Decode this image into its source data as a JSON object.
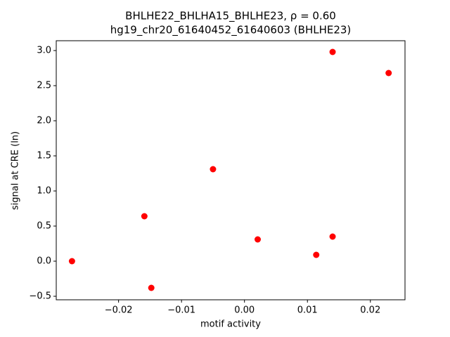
{
  "chart_data": {
    "type": "scatter",
    "title": "BHLHE22_BHLHA15_BHLHE23, ρ = 0.60",
    "subtitle": "hg19_chr20_61640452_61640603 (BHLHE23)",
    "x_label": "motif activity",
    "y_label": "signal at CRE (ln)",
    "color": "#ff0000",
    "x": [
      -0.0274,
      -0.0159,
      -0.0148,
      -0.005,
      0.0021,
      0.0114,
      0.014,
      0.014,
      0.0229
    ],
    "values": [
      0.0,
      0.64,
      -0.38,
      1.31,
      0.31,
      0.09,
      0.35,
      2.98,
      2.68
    ],
    "xlim": [
      -0.0299,
      0.0255
    ],
    "ylim": [
      -0.55,
      3.14
    ],
    "xticks": [
      {
        "value": -0.02,
        "label": "−0.02"
      },
      {
        "value": -0.01,
        "label": "−0.01"
      },
      {
        "value": 0,
        "label": "0.00"
      },
      0.01,
      0.02
    ],
    "yticks": [
      {
        "value": -0.5,
        "label": "−0.5"
      },
      {
        "value": 0,
        "label": "0.0"
      },
      0.5,
      {
        "value": 1,
        "label": "1.0"
      },
      1.5,
      {
        "value": 2,
        "label": "2.0"
      },
      2.5,
      {
        "value": 3,
        "label": "3.0"
      }
    ]
  }
}
